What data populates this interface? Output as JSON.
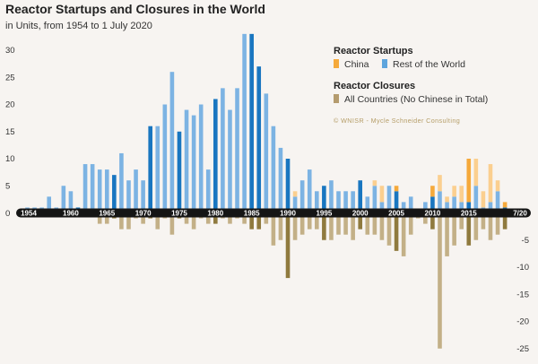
{
  "chart_data": {
    "type": "bar",
    "title": "Reactor Startups and Closures in the World",
    "subtitle": "in Units, from 1954 to 1 July 2020",
    "x": [
      1954,
      1955,
      1956,
      1957,
      1958,
      1959,
      1960,
      1961,
      1962,
      1963,
      1964,
      1965,
      1966,
      1967,
      1968,
      1969,
      1970,
      1971,
      1972,
      1973,
      1974,
      1975,
      1976,
      1977,
      1978,
      1979,
      1980,
      1981,
      1982,
      1983,
      1984,
      1985,
      1986,
      1987,
      1988,
      1989,
      1990,
      1991,
      1992,
      1993,
      1994,
      1995,
      1996,
      1997,
      1998,
      1999,
      2000,
      2001,
      2002,
      2003,
      2004,
      2005,
      2006,
      2007,
      2008,
      2009,
      2010,
      2011,
      2012,
      2013,
      2014,
      2015,
      2016,
      2017,
      2018,
      2019,
      2020
    ],
    "x_tick_labels": [
      "1954",
      "1960",
      "1965",
      "1970",
      "1975",
      "1980",
      "1985",
      "1990",
      "1995",
      "2000",
      "2005",
      "2010",
      "2015",
      "7/20"
    ],
    "ylim": [
      -27,
      33
    ],
    "yticks_positive": [
      0,
      5,
      10,
      15,
      20,
      25,
      30
    ],
    "yticks_negative": [
      -5,
      -10,
      -15,
      -20,
      -25
    ],
    "series": [
      {
        "name": "China",
        "group": "Reactor Startups",
        "color": "#f5a93b",
        "values": [
          0,
          0,
          0,
          0,
          0,
          0,
          0,
          0,
          0,
          0,
          0,
          0,
          0,
          0,
          0,
          0,
          0,
          0,
          0,
          0,
          0,
          0,
          0,
          0,
          0,
          0,
          0,
          0,
          0,
          0,
          0,
          0,
          0,
          0,
          0,
          0,
          0,
          1,
          0,
          0,
          0,
          0,
          0,
          0,
          0,
          0,
          0,
          0,
          1,
          3,
          0,
          1,
          0,
          0,
          0,
          0,
          2,
          3,
          1,
          2,
          3,
          8,
          5,
          3,
          7,
          2,
          1
        ]
      },
      {
        "name": "Rest of the World",
        "group": "Reactor Startups",
        "color": "#5ea5dd",
        "values": [
          1,
          1,
          1,
          3,
          1,
          5,
          4,
          1,
          9,
          9,
          8,
          8,
          7,
          11,
          6,
          8,
          6,
          16,
          16,
          20,
          26,
          15,
          19,
          18,
          20,
          8,
          21,
          23,
          19,
          23,
          33,
          33,
          27,
          22,
          16,
          12,
          10,
          3,
          6,
          8,
          4,
          5,
          6,
          4,
          4,
          4,
          6,
          3,
          5,
          2,
          5,
          4,
          2,
          3,
          0,
          2,
          3,
          4,
          2,
          3,
          2,
          2,
          5,
          1,
          2,
          4,
          1
        ]
      },
      {
        "name": "All Countries (No Chinese in Total)",
        "group": "Reactor Closures",
        "color": "#b49b6e",
        "values": [
          0,
          0,
          0,
          0,
          0,
          0,
          0,
          0,
          0,
          0,
          -2,
          -2,
          -1,
          -3,
          -3,
          -1,
          -2,
          -1,
          -3,
          -1,
          -4,
          -1,
          -2,
          -3,
          -1,
          -2,
          -2,
          -1,
          -2,
          -1,
          -2,
          -3,
          -3,
          -2,
          -6,
          -5,
          -12,
          -5,
          -4,
          -3,
          -3,
          -5,
          -5,
          -4,
          -4,
          -5,
          -3,
          -4,
          -4,
          -5,
          -6,
          -7,
          -8,
          -4,
          -1,
          -2,
          -3,
          -25,
          -8,
          -6,
          -3,
          -6,
          -5,
          -3,
          -5,
          -4,
          -3
        ]
      }
    ],
    "legend": {
      "position": "top-right",
      "startups_title": "Reactor Startups",
      "closures_title": "Reactor Closures",
      "china": "China",
      "rest": "Rest of the World",
      "closures": "All Countries (No Chinese in Total)"
    },
    "credit": "© WNISR - Mycle Schneider Consulting"
  }
}
